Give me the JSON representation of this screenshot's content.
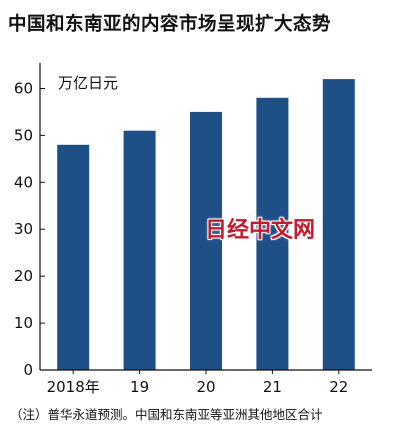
{
  "title": "中国和东南亚的内容市场呈现扩大态势",
  "watermark": "日经中文网",
  "note": "（注）普华永道预测。中国和东南亚等亚洲其他地区合计",
  "colors": {
    "bar": "#1e4f86",
    "axis": "#111111"
  },
  "chart_data": {
    "type": "bar",
    "title": "中国和东南亚的内容市场呈现扩大态势",
    "xlabel": "",
    "ylabel": "万亿日元",
    "categories": [
      "2018年",
      "19",
      "20",
      "21",
      "22"
    ],
    "values": [
      48,
      51,
      55,
      58,
      62
    ],
    "ylim": [
      0,
      65
    ],
    "yticks": [
      0,
      10,
      20,
      30,
      40,
      50,
      60
    ],
    "grid": false,
    "legend": "none"
  }
}
